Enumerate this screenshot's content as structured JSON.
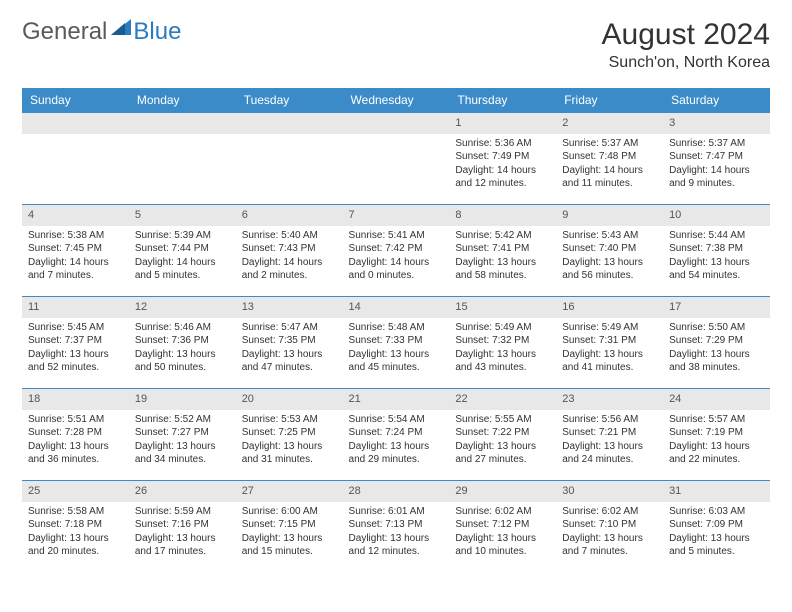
{
  "logo": {
    "general": "General",
    "blue": "Blue"
  },
  "title": "August 2024",
  "location": "Sunch'on, North Korea",
  "colors": {
    "header_bg": "#3b8bc9",
    "header_text": "#ffffff",
    "daynum_bg": "#e8e8e8",
    "border": "#3b8bc9",
    "logo_gray": "#5a5a5a",
    "logo_blue": "#2b7bbf"
  },
  "weekdays": [
    "Sunday",
    "Monday",
    "Tuesday",
    "Wednesday",
    "Thursday",
    "Friday",
    "Saturday"
  ],
  "weeks": [
    [
      {
        "n": "",
        "sr": "",
        "ss": "",
        "dl": ""
      },
      {
        "n": "",
        "sr": "",
        "ss": "",
        "dl": ""
      },
      {
        "n": "",
        "sr": "",
        "ss": "",
        "dl": ""
      },
      {
        "n": "",
        "sr": "",
        "ss": "",
        "dl": ""
      },
      {
        "n": "1",
        "sr": "Sunrise: 5:36 AM",
        "ss": "Sunset: 7:49 PM",
        "dl": "Daylight: 14 hours and 12 minutes."
      },
      {
        "n": "2",
        "sr": "Sunrise: 5:37 AM",
        "ss": "Sunset: 7:48 PM",
        "dl": "Daylight: 14 hours and 11 minutes."
      },
      {
        "n": "3",
        "sr": "Sunrise: 5:37 AM",
        "ss": "Sunset: 7:47 PM",
        "dl": "Daylight: 14 hours and 9 minutes."
      }
    ],
    [
      {
        "n": "4",
        "sr": "Sunrise: 5:38 AM",
        "ss": "Sunset: 7:45 PM",
        "dl": "Daylight: 14 hours and 7 minutes."
      },
      {
        "n": "5",
        "sr": "Sunrise: 5:39 AM",
        "ss": "Sunset: 7:44 PM",
        "dl": "Daylight: 14 hours and 5 minutes."
      },
      {
        "n": "6",
        "sr": "Sunrise: 5:40 AM",
        "ss": "Sunset: 7:43 PM",
        "dl": "Daylight: 14 hours and 2 minutes."
      },
      {
        "n": "7",
        "sr": "Sunrise: 5:41 AM",
        "ss": "Sunset: 7:42 PM",
        "dl": "Daylight: 14 hours and 0 minutes."
      },
      {
        "n": "8",
        "sr": "Sunrise: 5:42 AM",
        "ss": "Sunset: 7:41 PM",
        "dl": "Daylight: 13 hours and 58 minutes."
      },
      {
        "n": "9",
        "sr": "Sunrise: 5:43 AM",
        "ss": "Sunset: 7:40 PM",
        "dl": "Daylight: 13 hours and 56 minutes."
      },
      {
        "n": "10",
        "sr": "Sunrise: 5:44 AM",
        "ss": "Sunset: 7:38 PM",
        "dl": "Daylight: 13 hours and 54 minutes."
      }
    ],
    [
      {
        "n": "11",
        "sr": "Sunrise: 5:45 AM",
        "ss": "Sunset: 7:37 PM",
        "dl": "Daylight: 13 hours and 52 minutes."
      },
      {
        "n": "12",
        "sr": "Sunrise: 5:46 AM",
        "ss": "Sunset: 7:36 PM",
        "dl": "Daylight: 13 hours and 50 minutes."
      },
      {
        "n": "13",
        "sr": "Sunrise: 5:47 AM",
        "ss": "Sunset: 7:35 PM",
        "dl": "Daylight: 13 hours and 47 minutes."
      },
      {
        "n": "14",
        "sr": "Sunrise: 5:48 AM",
        "ss": "Sunset: 7:33 PM",
        "dl": "Daylight: 13 hours and 45 minutes."
      },
      {
        "n": "15",
        "sr": "Sunrise: 5:49 AM",
        "ss": "Sunset: 7:32 PM",
        "dl": "Daylight: 13 hours and 43 minutes."
      },
      {
        "n": "16",
        "sr": "Sunrise: 5:49 AM",
        "ss": "Sunset: 7:31 PM",
        "dl": "Daylight: 13 hours and 41 minutes."
      },
      {
        "n": "17",
        "sr": "Sunrise: 5:50 AM",
        "ss": "Sunset: 7:29 PM",
        "dl": "Daylight: 13 hours and 38 minutes."
      }
    ],
    [
      {
        "n": "18",
        "sr": "Sunrise: 5:51 AM",
        "ss": "Sunset: 7:28 PM",
        "dl": "Daylight: 13 hours and 36 minutes."
      },
      {
        "n": "19",
        "sr": "Sunrise: 5:52 AM",
        "ss": "Sunset: 7:27 PM",
        "dl": "Daylight: 13 hours and 34 minutes."
      },
      {
        "n": "20",
        "sr": "Sunrise: 5:53 AM",
        "ss": "Sunset: 7:25 PM",
        "dl": "Daylight: 13 hours and 31 minutes."
      },
      {
        "n": "21",
        "sr": "Sunrise: 5:54 AM",
        "ss": "Sunset: 7:24 PM",
        "dl": "Daylight: 13 hours and 29 minutes."
      },
      {
        "n": "22",
        "sr": "Sunrise: 5:55 AM",
        "ss": "Sunset: 7:22 PM",
        "dl": "Daylight: 13 hours and 27 minutes."
      },
      {
        "n": "23",
        "sr": "Sunrise: 5:56 AM",
        "ss": "Sunset: 7:21 PM",
        "dl": "Daylight: 13 hours and 24 minutes."
      },
      {
        "n": "24",
        "sr": "Sunrise: 5:57 AM",
        "ss": "Sunset: 7:19 PM",
        "dl": "Daylight: 13 hours and 22 minutes."
      }
    ],
    [
      {
        "n": "25",
        "sr": "Sunrise: 5:58 AM",
        "ss": "Sunset: 7:18 PM",
        "dl": "Daylight: 13 hours and 20 minutes."
      },
      {
        "n": "26",
        "sr": "Sunrise: 5:59 AM",
        "ss": "Sunset: 7:16 PM",
        "dl": "Daylight: 13 hours and 17 minutes."
      },
      {
        "n": "27",
        "sr": "Sunrise: 6:00 AM",
        "ss": "Sunset: 7:15 PM",
        "dl": "Daylight: 13 hours and 15 minutes."
      },
      {
        "n": "28",
        "sr": "Sunrise: 6:01 AM",
        "ss": "Sunset: 7:13 PM",
        "dl": "Daylight: 13 hours and 12 minutes."
      },
      {
        "n": "29",
        "sr": "Sunrise: 6:02 AM",
        "ss": "Sunset: 7:12 PM",
        "dl": "Daylight: 13 hours and 10 minutes."
      },
      {
        "n": "30",
        "sr": "Sunrise: 6:02 AM",
        "ss": "Sunset: 7:10 PM",
        "dl": "Daylight: 13 hours and 7 minutes."
      },
      {
        "n": "31",
        "sr": "Sunrise: 6:03 AM",
        "ss": "Sunset: 7:09 PM",
        "dl": "Daylight: 13 hours and 5 minutes."
      }
    ]
  ]
}
